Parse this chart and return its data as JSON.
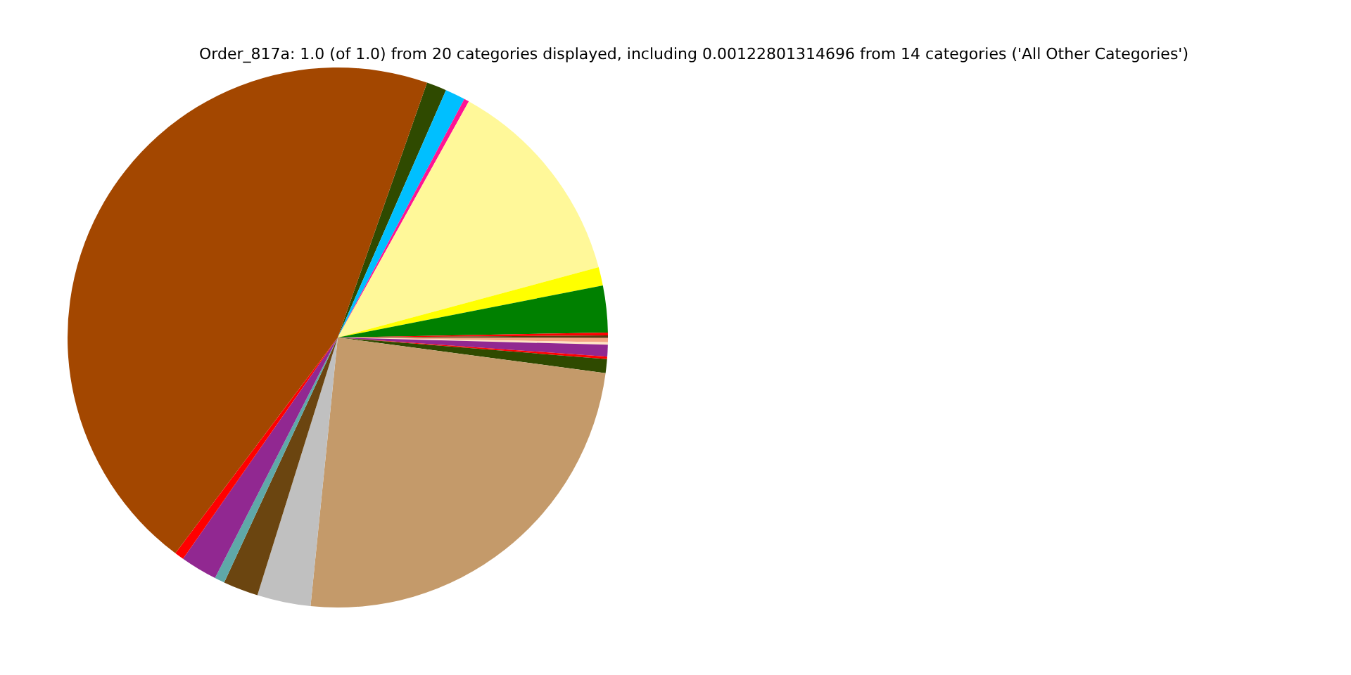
{
  "chart_data": {
    "type": "pie",
    "title": "Order_817a: 1.0 (of 1.0) from 20 categories displayed, including 0.00122801314696 from 14 categories ('All Other Categories')",
    "categories": [
      null,
      null,
      null,
      null,
      null,
      null,
      null,
      null,
      null,
      null,
      null,
      null,
      null,
      null,
      null,
      null,
      null,
      null,
      null,
      null
    ],
    "values": [
      1.2,
      1.2,
      0.3,
      12.75,
      1.1,
      2.8,
      0.17,
      0.15,
      0.25,
      0.15,
      0.7,
      0.15,
      0.83,
      24.5,
      3.2,
      2.1,
      0.6,
      2.2,
      0.56,
      45.1
    ],
    "colors": [
      "#2f4a00",
      "#00bfff",
      "#ff1493",
      "#fff899",
      "#ffff00",
      "#008000",
      "#ff0000",
      "#5a3a10",
      "#f4a582",
      "#ffe4c4",
      "#912891",
      "#ff0000",
      "#2f4a00",
      "#c49a6a",
      "#c0c0c0",
      "#6b4510",
      "#5fa8a8",
      "#912891",
      "#ff0000",
      "#a34700"
    ],
    "legend": false
  }
}
